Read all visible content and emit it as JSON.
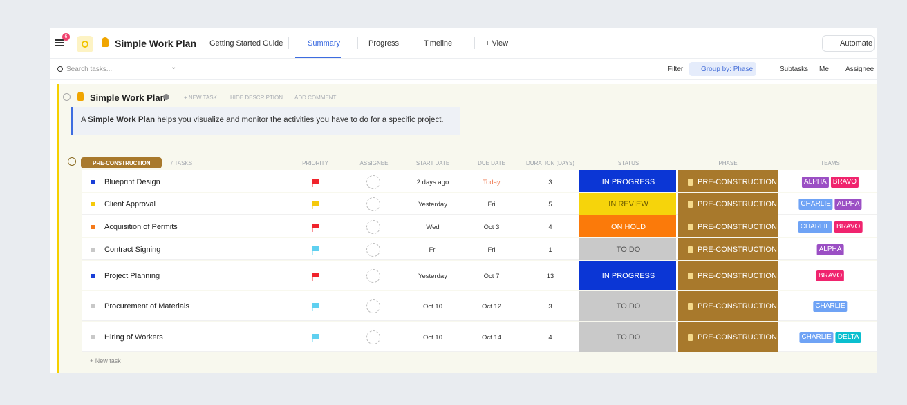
{
  "topbar": {
    "badge": "6",
    "title": "Simple Work Plan",
    "tabs": [
      "Getting Started Guide",
      "Summary",
      "Progress",
      "Timeline",
      "+ View"
    ],
    "active_tab": 1,
    "automate": "Automate"
  },
  "toolbar": {
    "search": "Search tasks...",
    "filter": "Filter",
    "group_by": "Group by: Phase",
    "subtasks": "Subtasks",
    "me": "Me",
    "assignee": "Assignee"
  },
  "list": {
    "title": "Simple Work Plan",
    "actions": [
      "+ NEW TASK",
      "HIDE DESCRIPTION",
      "ADD COMMENT"
    ],
    "description": {
      "pre": "A ",
      "bold": "Simple Work Plan",
      "post": " helps you visualize and monitor the activities you have to do for a specific project."
    }
  },
  "group": {
    "name": "PRE-CONSTRUCTION",
    "count": "7 TASKS",
    "color": "#a8792c",
    "columns": [
      "PRIORITY",
      "ASSIGNEE",
      "START DATE",
      "DUE DATE",
      "DURATION (DAYS)",
      "STATUS",
      "PHASE",
      "TEAMS"
    ],
    "rows": [
      {
        "name": "Blueprint Design",
        "bullet": "#1a3fd8",
        "priority": "#f0242c",
        "start": "2 days ago",
        "due": "Today",
        "due_color": "#ef7b53",
        "duration": 3,
        "status": "IN PROGRESS",
        "status_color": "#0b36d5",
        "status_text": "#ffffff",
        "phase": "PRE-CONSTRUCTION",
        "teams": [
          {
            "name": "ALPHA",
            "color": "#9b4fc4"
          },
          {
            "name": "BRAVO",
            "color": "#f0246e"
          }
        ]
      },
      {
        "name": "Client Approval",
        "bullet": "#f5c90a",
        "priority": "#f5c90a",
        "start": "Yesterday",
        "due": "Fri",
        "duration": 5,
        "status": "IN REVIEW",
        "status_color": "#f6d40b",
        "status_text": "#6b5a00",
        "phase": "PRE-CONSTRUCTION",
        "teams": [
          {
            "name": "CHARLIE",
            "color": "#6fa3f5"
          },
          {
            "name": "ALPHA",
            "color": "#9b4fc4"
          }
        ]
      },
      {
        "name": "Acquisition of Permits",
        "bullet": "#f57a1a",
        "priority": "#f0242c",
        "start": "Wed",
        "due": "Oct 3",
        "duration": 4,
        "status": "ON HOLD",
        "status_color": "#fb7a0a",
        "status_text": "#ffffff",
        "phase": "PRE-CONSTRUCTION",
        "teams": [
          {
            "name": "CHARLIE",
            "color": "#6fa3f5"
          },
          {
            "name": "BRAVO",
            "color": "#f0246e"
          }
        ]
      },
      {
        "name": "Contract Signing",
        "bullet": "#c8c8c8",
        "priority": "#5fd0f0",
        "start": "Fri",
        "due": "Fri",
        "duration": 1,
        "status": "TO DO",
        "status_color": "#c9c9c9",
        "status_text": "#555555",
        "phase": "PRE-CONSTRUCTION",
        "teams": [
          {
            "name": "ALPHA",
            "color": "#9b4fc4"
          }
        ]
      },
      {
        "name": "Project Planning",
        "bullet": "#1a3fd8",
        "priority": "#f0242c",
        "start": "Yesterday",
        "due": "Oct 7",
        "duration": 13,
        "status": "IN PROGRESS",
        "status_color": "#0b36d5",
        "status_text": "#ffffff",
        "phase": "PRE-CONSTRUCTION",
        "teams": [
          {
            "name": "BRAVO",
            "color": "#f0246e"
          }
        ]
      },
      {
        "name": "Procurement of Materials",
        "bullet": "#c8c8c8",
        "priority": "#5fd0f0",
        "start": "Oct 10",
        "due": "Oct 12",
        "duration": 3,
        "status": "TO DO",
        "status_color": "#c9c9c9",
        "status_text": "#555555",
        "phase": "PRE-CONSTRUCTION",
        "teams": [
          {
            "name": "CHARLIE",
            "color": "#6fa3f5"
          }
        ]
      },
      {
        "name": "Hiring of Workers",
        "bullet": "#c8c8c8",
        "priority": "#5fd0f0",
        "start": "Oct 10",
        "due": "Oct 14",
        "duration": 4,
        "status": "TO DO",
        "status_color": "#c9c9c9",
        "status_text": "#555555",
        "phase": "PRE-CONSTRUCTION",
        "teams": [
          {
            "name": "CHARLIE",
            "color": "#6fa3f5"
          },
          {
            "name": "DELTA",
            "color": "#0bbfcf"
          }
        ]
      }
    ],
    "new_task": "+ New task"
  }
}
